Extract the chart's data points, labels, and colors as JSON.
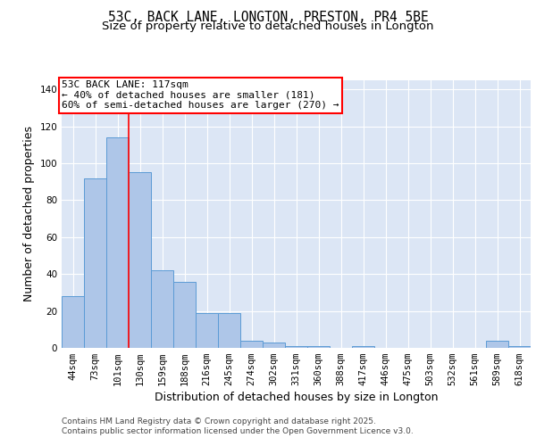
{
  "title": "53C, BACK LANE, LONGTON, PRESTON, PR4 5BE",
  "subtitle": "Size of property relative to detached houses in Longton",
  "xlabel": "Distribution of detached houses by size in Longton",
  "ylabel": "Number of detached properties",
  "categories": [
    "44sqm",
    "73sqm",
    "101sqm",
    "130sqm",
    "159sqm",
    "188sqm",
    "216sqm",
    "245sqm",
    "274sqm",
    "302sqm",
    "331sqm",
    "360sqm",
    "388sqm",
    "417sqm",
    "446sqm",
    "475sqm",
    "503sqm",
    "532sqm",
    "561sqm",
    "589sqm",
    "618sqm"
  ],
  "values": [
    28,
    92,
    114,
    95,
    42,
    36,
    19,
    19,
    4,
    3,
    1,
    1,
    0,
    1,
    0,
    0,
    0,
    0,
    0,
    4,
    1
  ],
  "bar_color": "#aec6e8",
  "bar_edge_color": "#5b9bd5",
  "background_color": "#dce6f5",
  "vline_x": 2.5,
  "vline_color": "red",
  "annotation_title": "53C BACK LANE: 117sqm",
  "annotation_line1": "← 40% of detached houses are smaller (181)",
  "annotation_line2": "60% of semi-detached houses are larger (270) →",
  "annotation_box_color": "white",
  "annotation_box_edge": "red",
  "ylim": [
    0,
    145
  ],
  "yticks": [
    0,
    20,
    40,
    60,
    80,
    100,
    120,
    140
  ],
  "footer1": "Contains HM Land Registry data © Crown copyright and database right 2025.",
  "footer2": "Contains public sector information licensed under the Open Government Licence v3.0.",
  "title_fontsize": 10.5,
  "subtitle_fontsize": 9.5,
  "tick_fontsize": 7.5,
  "label_fontsize": 9,
  "footer_fontsize": 6.5,
  "ann_fontsize": 8
}
